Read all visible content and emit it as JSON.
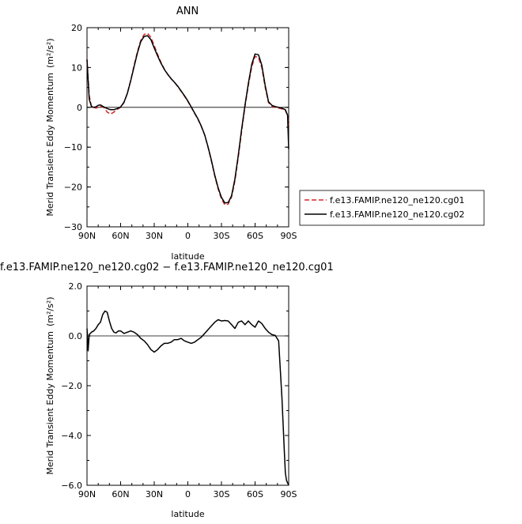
{
  "chart_data": [
    {
      "type": "line",
      "title": "ANN",
      "xlabel": "latitude",
      "ylabel_main": "Merid Transient Eddy Momentum",
      "ylabel_unit": "m²/s²",
      "xlim": [
        90,
        -90
      ],
      "ylim": [
        -30,
        20
      ],
      "xticks": [
        90,
        60,
        30,
        0,
        -30,
        -60,
        -90
      ],
      "xtick_labels": [
        "90N",
        "60N",
        "30N",
        "0",
        "30S",
        "60S",
        "90S"
      ],
      "yticks": [
        20,
        10,
        0,
        -10,
        -20,
        -30
      ],
      "ytick_labels": [
        "20",
        "10",
        "0",
        "−10",
        "−20",
        "−30"
      ],
      "legend_position": "right",
      "series": [
        {
          "name": "f.e13.FAMIP.ne120_ne120.cg01",
          "color": "#d62728",
          "dash": "dashed",
          "x": [
            90,
            88,
            86,
            84,
            82,
            80,
            78,
            75,
            72,
            69,
            66,
            63,
            60,
            57,
            54,
            51,
            48,
            45,
            42,
            39,
            36,
            33,
            30,
            27,
            24,
            21,
            18,
            15,
            12,
            9,
            6,
            3,
            0,
            -3,
            -6,
            -9,
            -12,
            -15,
            -18,
            -21,
            -24,
            -27,
            -30,
            -33,
            -36,
            -39,
            -42,
            -45,
            -48,
            -51,
            -54,
            -57,
            -60,
            -63,
            -66,
            -69,
            -72,
            -75,
            -78,
            -81,
            -84,
            -87,
            -89,
            -90
          ],
          "y": [
            12,
            3,
            0.1,
            0,
            -0.2,
            0,
            0.2,
            0,
            -1.2,
            -1.7,
            -1.2,
            -0.5,
            0,
            1.2,
            3.5,
            6.8,
            10.5,
            14,
            16.8,
            18.3,
            18.6,
            17.6,
            15.5,
            13.3,
            11.3,
            9.6,
            8.3,
            7.2,
            6.3,
            5.2,
            4,
            2.8,
            1.5,
            0,
            -1.5,
            -3,
            -4.8,
            -7,
            -10,
            -13.5,
            -17.2,
            -20.5,
            -23,
            -24.5,
            -24.3,
            -22.5,
            -18.5,
            -12.5,
            -6,
            0.2,
            5.5,
            10.2,
            12.8,
            12.5,
            10,
            5,
            1.2,
            0.3,
            0,
            -0.2,
            -0.4,
            -0.8,
            -2,
            -4.5
          ]
        },
        {
          "name": "f.e13.FAMIP.ne120_ne120.cg02",
          "color": "#000000",
          "dash": "solid",
          "x": [
            90,
            88,
            86,
            84,
            82,
            80,
            78,
            75,
            72,
            69,
            66,
            63,
            60,
            57,
            54,
            51,
            48,
            45,
            42,
            39,
            36,
            33,
            30,
            27,
            24,
            21,
            18,
            15,
            12,
            9,
            6,
            3,
            0,
            -3,
            -6,
            -9,
            -12,
            -15,
            -18,
            -21,
            -24,
            -27,
            -30,
            -33,
            -36,
            -39,
            -42,
            -45,
            -48,
            -51,
            -54,
            -57,
            -60,
            -63,
            -66,
            -69,
            -72,
            -75,
            -78,
            -81,
            -84,
            -87,
            -89,
            -90
          ],
          "y": [
            12,
            2,
            0.2,
            0,
            0.1,
            0.5,
            0.6,
            0.1,
            -0.3,
            -0.6,
            -0.6,
            -0.3,
            0.1,
            1.3,
            3.5,
            6.7,
            10.2,
            13.7,
            16.5,
            17.8,
            18,
            17,
            14.9,
            12.9,
            11.1,
            9.5,
            8.3,
            7.2,
            6.3,
            5.3,
            4.1,
            2.9,
            1.6,
            0.1,
            -1.4,
            -2.9,
            -4.7,
            -6.9,
            -9.9,
            -13.3,
            -17,
            -20.2,
            -22.6,
            -24,
            -23.9,
            -22.2,
            -18,
            -12,
            -5.5,
            0.6,
            6,
            10.8,
            13.4,
            13.2,
            10.6,
            5.5,
            1.4,
            0.5,
            0.2,
            0,
            -0.2,
            -0.6,
            -2,
            -10.5
          ]
        }
      ]
    },
    {
      "type": "line",
      "title": "f.e13.FAMIP.ne120_ne120.cg02 − f.e13.FAMIP.ne120_ne120.cg01",
      "xlabel": "latitude",
      "ylabel_main": "Merid Transient Eddy Momentum",
      "ylabel_unit": "m²/s²",
      "xlim": [
        90,
        -90
      ],
      "ylim": [
        -6,
        2
      ],
      "xticks": [
        90,
        60,
        30,
        0,
        -30,
        -60,
        -90
      ],
      "xtick_labels": [
        "90N",
        "60N",
        "30N",
        "0",
        "30S",
        "60S",
        "90S"
      ],
      "yticks": [
        2,
        0,
        -2,
        -4,
        -6
      ],
      "ytick_labels": [
        "2.0",
        "0.0",
        "−2.0",
        "−4.0",
        "−6.0"
      ],
      "series": [
        {
          "color": "#000000",
          "dash": "solid",
          "x": [
            90,
            89.5,
            89,
            88,
            86,
            84,
            82,
            80,
            78,
            76,
            74,
            72,
            70,
            68,
            66,
            64,
            62,
            60,
            57,
            54,
            51,
            48,
            45,
            42,
            39,
            36,
            33,
            30,
            27,
            24,
            21,
            18,
            15,
            12,
            9,
            6,
            3,
            0,
            -3,
            -6,
            -9,
            -12,
            -15,
            -18,
            -21,
            -24,
            -27,
            -30,
            -33,
            -36,
            -39,
            -42,
            -45,
            -48,
            -51,
            -54,
            -57,
            -60,
            -63,
            -66,
            -69,
            -72,
            -75,
            -78,
            -81,
            -84,
            -86,
            -87,
            -88,
            -89,
            -89.5,
            -90
          ],
          "y": [
            0.3,
            0,
            -0.6,
            0.05,
            0.15,
            0.2,
            0.3,
            0.45,
            0.55,
            0.85,
            1.0,
            0.95,
            0.6,
            0.3,
            0.15,
            0.12,
            0.2,
            0.2,
            0.1,
            0.15,
            0.2,
            0.15,
            0.05,
            -0.1,
            -0.2,
            -0.35,
            -0.55,
            -0.65,
            -0.55,
            -0.4,
            -0.3,
            -0.3,
            -0.25,
            -0.15,
            -0.15,
            -0.1,
            -0.2,
            -0.25,
            -0.3,
            -0.25,
            -0.15,
            -0.05,
            0.1,
            0.25,
            0.4,
            0.55,
            0.65,
            0.6,
            0.62,
            0.6,
            0.45,
            0.3,
            0.55,
            0.6,
            0.45,
            0.6,
            0.45,
            0.35,
            0.6,
            0.5,
            0.3,
            0.15,
            0.05,
            0.02,
            -0.2,
            -2.5,
            -4.5,
            -5.5,
            -5.8,
            -5.9,
            -5.95,
            -6.0
          ]
        }
      ]
    }
  ]
}
